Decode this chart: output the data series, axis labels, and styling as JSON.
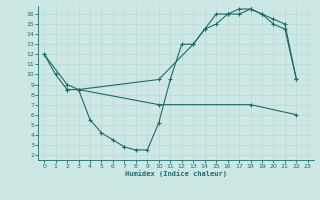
{
  "bg_color": "#cde8e4",
  "line_color": "#1a6b6b",
  "grid_color": "#b8d8d4",
  "xlabel": "Humidex (Indice chaleur)",
  "xlim": [
    -0.5,
    23.5
  ],
  "ylim": [
    1.5,
    16.8
  ],
  "xticks": [
    0,
    1,
    2,
    3,
    4,
    5,
    6,
    7,
    8,
    9,
    10,
    11,
    12,
    13,
    14,
    15,
    16,
    17,
    18,
    19,
    20,
    21,
    22,
    23
  ],
  "yticks": [
    2,
    3,
    4,
    5,
    6,
    7,
    8,
    9,
    10,
    11,
    12,
    13,
    14,
    15,
    16
  ],
  "line1_x": [
    0,
    1,
    2,
    3,
    4,
    5,
    6,
    7,
    8,
    9,
    10,
    11,
    12,
    13,
    14,
    15,
    16,
    17,
    18,
    19,
    20,
    21,
    22
  ],
  "line1_y": [
    12,
    10,
    8.5,
    8.5,
    5.5,
    4.2,
    3.5,
    2.8,
    2.5,
    2.5,
    5.2,
    9.5,
    13,
    13,
    14.5,
    16,
    16,
    16,
    16.5,
    16,
    15,
    14.5,
    9.5
  ],
  "line2_x": [
    2,
    3,
    10,
    18,
    22
  ],
  "line2_y": [
    8.5,
    8.5,
    7,
    7,
    6
  ],
  "line3_x": [
    0,
    2,
    3,
    10,
    13,
    14,
    15,
    16,
    17,
    18,
    19,
    20,
    21,
    22
  ],
  "line3_y": [
    12,
    9,
    8.5,
    9.5,
    13,
    14.5,
    15,
    16,
    16.5,
    16.5,
    16,
    15.5,
    15,
    9.5
  ]
}
